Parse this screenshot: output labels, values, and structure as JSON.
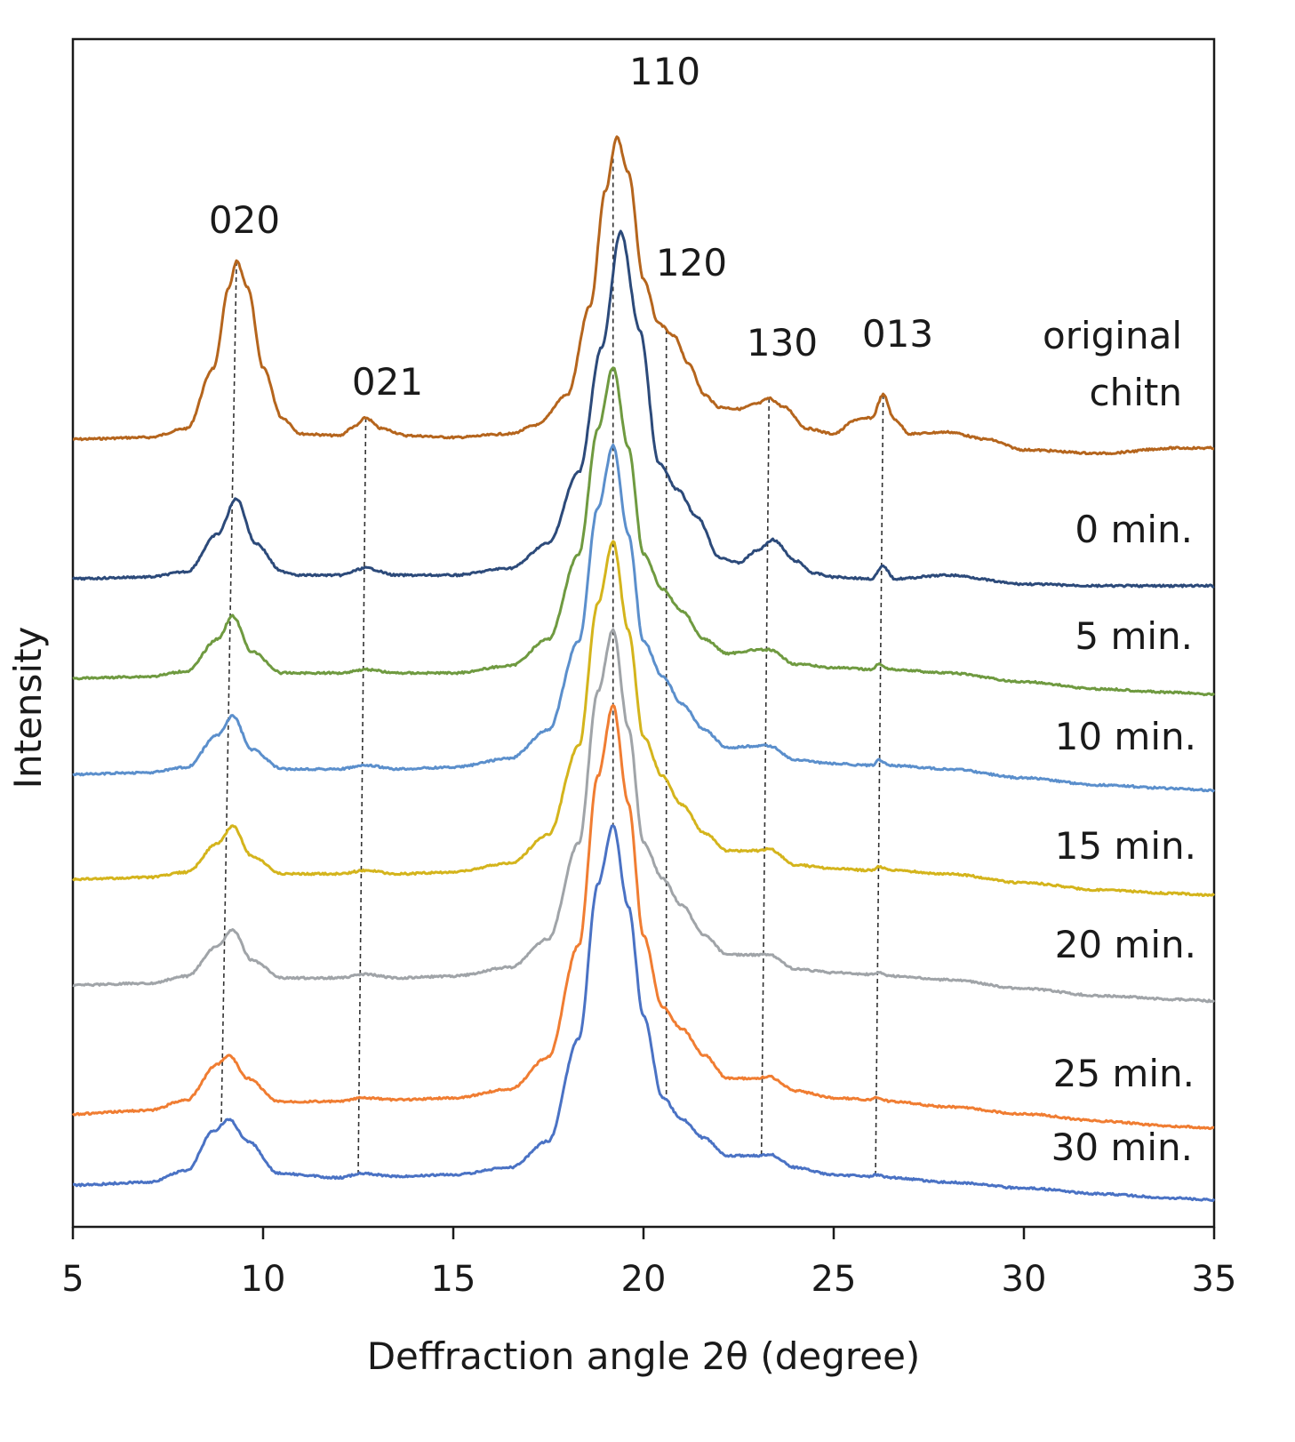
{
  "chart_data": {
    "type": "line",
    "title": "",
    "xlabel": "Deffraction angle 2θ (degree)",
    "ylabel": "Intensity",
    "xlim": [
      5,
      35
    ],
    "xticks": [
      5,
      10,
      15,
      20,
      25,
      30,
      35
    ],
    "yticks_visible": false,
    "grid": false,
    "legend": "inline labels at right end of each trace",
    "peak_labels": [
      {
        "label": "020",
        "x": 9.3,
        "line_x": [
          9.3,
          8.9
        ]
      },
      {
        "label": "021",
        "x": 12.7,
        "line_x": [
          12.7,
          12.5
        ]
      },
      {
        "label": "110",
        "x": 19.3,
        "line_x": [
          19.2,
          19.2
        ]
      },
      {
        "label": "120",
        "x": 20.6,
        "line_x": [
          20.6,
          20.6
        ]
      },
      {
        "label": "130",
        "x": 23.3,
        "line_x": [
          23.3,
          23.1
        ]
      },
      {
        "label": "013",
        "x": 26.3,
        "line_x": [
          26.3,
          26.1
        ]
      }
    ],
    "series": [
      {
        "name": "original chitn",
        "color": "#b5651d",
        "x": [
          5,
          7,
          8,
          8.7,
          9.1,
          9.3,
          9.6,
          10,
          10.5,
          11,
          12,
          12.4,
          12.7,
          13.1,
          13.8,
          15,
          16.5,
          17.2,
          18,
          18.6,
          19,
          19.3,
          19.6,
          20,
          20.4,
          20.8,
          21.2,
          21.6,
          22,
          22.5,
          23,
          23.3,
          23.7,
          24.3,
          25,
          25.6,
          26,
          26.3,
          26.6,
          27,
          28,
          29,
          30,
          32,
          34,
          35
        ],
        "values": [
          0.0,
          0.01,
          0.06,
          0.4,
          0.85,
          1.0,
          0.85,
          0.4,
          0.12,
          0.03,
          0.02,
          0.07,
          0.12,
          0.06,
          0.02,
          0.01,
          0.03,
          0.08,
          0.25,
          0.75,
          1.4,
          1.7,
          1.5,
          0.9,
          0.65,
          0.58,
          0.42,
          0.25,
          0.18,
          0.17,
          0.2,
          0.23,
          0.18,
          0.06,
          0.03,
          0.11,
          0.12,
          0.25,
          0.11,
          0.03,
          0.04,
          0.0,
          -0.06,
          -0.08,
          -0.05,
          -0.05
        ],
        "label_text": [
          "original",
          "chitn"
        ]
      },
      {
        "name": "0 min.",
        "color": "#2c4a7a",
        "x": [
          5,
          7,
          8,
          8.8,
          9.3,
          9.8,
          10.5,
          11,
          12,
          12.7,
          13.5,
          15,
          16.5,
          17.5,
          18.3,
          18.9,
          19.4,
          19.9,
          20.4,
          20.9,
          21.4,
          22,
          22.5,
          23,
          23.4,
          24,
          24.5,
          25,
          26,
          26.3,
          26.6,
          28,
          30,
          32,
          34,
          35
        ],
        "values": [
          0.0,
          0.01,
          0.04,
          0.25,
          0.45,
          0.2,
          0.04,
          0.02,
          0.02,
          0.06,
          0.02,
          0.02,
          0.06,
          0.2,
          0.6,
          1.3,
          1.95,
          1.4,
          0.65,
          0.5,
          0.35,
          0.12,
          0.09,
          0.16,
          0.22,
          0.1,
          0.03,
          0.01,
          0.0,
          0.07,
          0.0,
          0.02,
          -0.03,
          -0.04,
          -0.04,
          -0.04
        ],
        "label_text": [
          "0 min."
        ]
      },
      {
        "name": "5 min.",
        "color": "#6f9a40",
        "x": [
          5,
          7,
          8,
          8.8,
          9.2,
          9.7,
          10.5,
          12,
          12.7,
          13.5,
          15,
          16.5,
          17.5,
          18.3,
          18.8,
          19.2,
          19.6,
          20,
          20.5,
          21,
          21.6,
          22.2,
          23,
          23.3,
          24,
          25,
          26,
          26.2,
          26.5,
          28,
          30,
          32,
          34,
          35
        ],
        "values": [
          0.0,
          0.01,
          0.04,
          0.22,
          0.35,
          0.15,
          0.03,
          0.03,
          0.05,
          0.03,
          0.03,
          0.07,
          0.22,
          0.7,
          1.4,
          1.75,
          1.3,
          0.7,
          0.5,
          0.38,
          0.22,
          0.14,
          0.16,
          0.16,
          0.08,
          0.06,
          0.05,
          0.08,
          0.05,
          0.03,
          -0.02,
          -0.06,
          -0.08,
          -0.09
        ],
        "label_text": [
          "5 min."
        ]
      },
      {
        "name": "10 min.",
        "color": "#5b8fcc",
        "x": [
          5,
          7,
          8,
          8.8,
          9.2,
          9.7,
          10.5,
          12,
          12.7,
          13.5,
          15,
          16.5,
          17.5,
          18.3,
          18.8,
          19.2,
          19.6,
          20,
          20.5,
          21,
          21.6,
          22.2,
          23,
          23.3,
          24,
          25,
          26,
          26.2,
          26.5,
          28,
          30,
          32,
          34,
          35
        ],
        "values": [
          0.0,
          0.01,
          0.04,
          0.22,
          0.33,
          0.14,
          0.03,
          0.03,
          0.05,
          0.03,
          0.04,
          0.09,
          0.25,
          0.75,
          1.5,
          1.85,
          1.35,
          0.75,
          0.55,
          0.4,
          0.25,
          0.15,
          0.16,
          0.16,
          0.08,
          0.06,
          0.05,
          0.08,
          0.05,
          0.03,
          -0.02,
          -0.06,
          -0.08,
          -0.09
        ],
        "label_text": [
          "10 min."
        ]
      },
      {
        "name": "15 min.",
        "color": "#d4b41c",
        "x": [
          5,
          7,
          8,
          8.8,
          9.2,
          9.7,
          10.5,
          12,
          12.7,
          13.5,
          15,
          16.5,
          17.5,
          18.3,
          18.8,
          19.2,
          19.6,
          20,
          20.5,
          21,
          21.6,
          22.2,
          23,
          23.3,
          24,
          25,
          26,
          26.2,
          26.5,
          28,
          30,
          32,
          34,
          35
        ],
        "values": [
          0.0,
          0.01,
          0.04,
          0.2,
          0.3,
          0.13,
          0.03,
          0.03,
          0.05,
          0.03,
          0.04,
          0.09,
          0.25,
          0.75,
          1.55,
          1.9,
          1.4,
          0.8,
          0.58,
          0.42,
          0.26,
          0.16,
          0.16,
          0.17,
          0.08,
          0.06,
          0.05,
          0.07,
          0.05,
          0.03,
          -0.02,
          -0.06,
          -0.08,
          -0.09
        ],
        "label_text": [
          "15 min."
        ]
      },
      {
        "name": "20 min.",
        "color": "#a0a4a8",
        "x": [
          5,
          7,
          8,
          8.8,
          9.2,
          9.7,
          10.5,
          12,
          12.7,
          13.5,
          15,
          16.5,
          17.5,
          18.3,
          18.8,
          19.2,
          19.6,
          20,
          20.5,
          21,
          21.6,
          22.2,
          23,
          23.3,
          24,
          25,
          26,
          26.2,
          26.5,
          28,
          30,
          32,
          34,
          35
        ],
        "values": [
          0.0,
          0.01,
          0.05,
          0.22,
          0.31,
          0.14,
          0.04,
          0.04,
          0.06,
          0.04,
          0.05,
          0.1,
          0.26,
          0.8,
          1.65,
          2.0,
          1.45,
          0.8,
          0.6,
          0.45,
          0.28,
          0.17,
          0.17,
          0.17,
          0.09,
          0.07,
          0.06,
          0.07,
          0.05,
          0.03,
          -0.02,
          -0.06,
          -0.08,
          -0.09
        ],
        "label_text": [
          "20 min."
        ]
      },
      {
        "name": "25 min.",
        "color": "#f07d32",
        "x": [
          5,
          7,
          8,
          8.8,
          9.1,
          9.6,
          10.4,
          12,
          12.6,
          13.5,
          15,
          16.5,
          17.5,
          18.3,
          18.8,
          19.2,
          19.6,
          20,
          20.5,
          21,
          21.6,
          22.2,
          23,
          23.3,
          24,
          25,
          26,
          26.1,
          26.5,
          28,
          30,
          32,
          34,
          35
        ],
        "values": [
          0.0,
          0.02,
          0.08,
          0.28,
          0.33,
          0.2,
          0.07,
          0.07,
          0.09,
          0.08,
          0.09,
          0.14,
          0.32,
          0.95,
          1.9,
          2.3,
          1.75,
          1.0,
          0.6,
          0.48,
          0.33,
          0.2,
          0.2,
          0.21,
          0.13,
          0.09,
          0.08,
          0.09,
          0.07,
          0.04,
          0.0,
          -0.04,
          -0.07,
          -0.08
        ],
        "label_text": [
          "25 min."
        ]
      },
      {
        "name": "30 min.",
        "color": "#4a72c4",
        "x": [
          5,
          7,
          8,
          8.7,
          9.1,
          9.6,
          10.4,
          12,
          12.6,
          13.5,
          15,
          16.5,
          17.5,
          18.3,
          18.8,
          19.2,
          19.6,
          20,
          20.5,
          21,
          21.6,
          22.2,
          23,
          23.3,
          24,
          25,
          26,
          26.1,
          26.5,
          28,
          30,
          32,
          34,
          35
        ],
        "values": [
          0.0,
          0.02,
          0.1,
          0.37,
          0.45,
          0.3,
          0.08,
          0.05,
          0.08,
          0.06,
          0.07,
          0.12,
          0.3,
          1.0,
          2.05,
          2.45,
          1.9,
          1.15,
          0.6,
          0.45,
          0.32,
          0.2,
          0.2,
          0.21,
          0.12,
          0.07,
          0.06,
          0.07,
          0.05,
          0.02,
          -0.02,
          -0.06,
          -0.09,
          -0.1
        ],
        "label_text": [
          "30 min."
        ]
      }
    ]
  }
}
